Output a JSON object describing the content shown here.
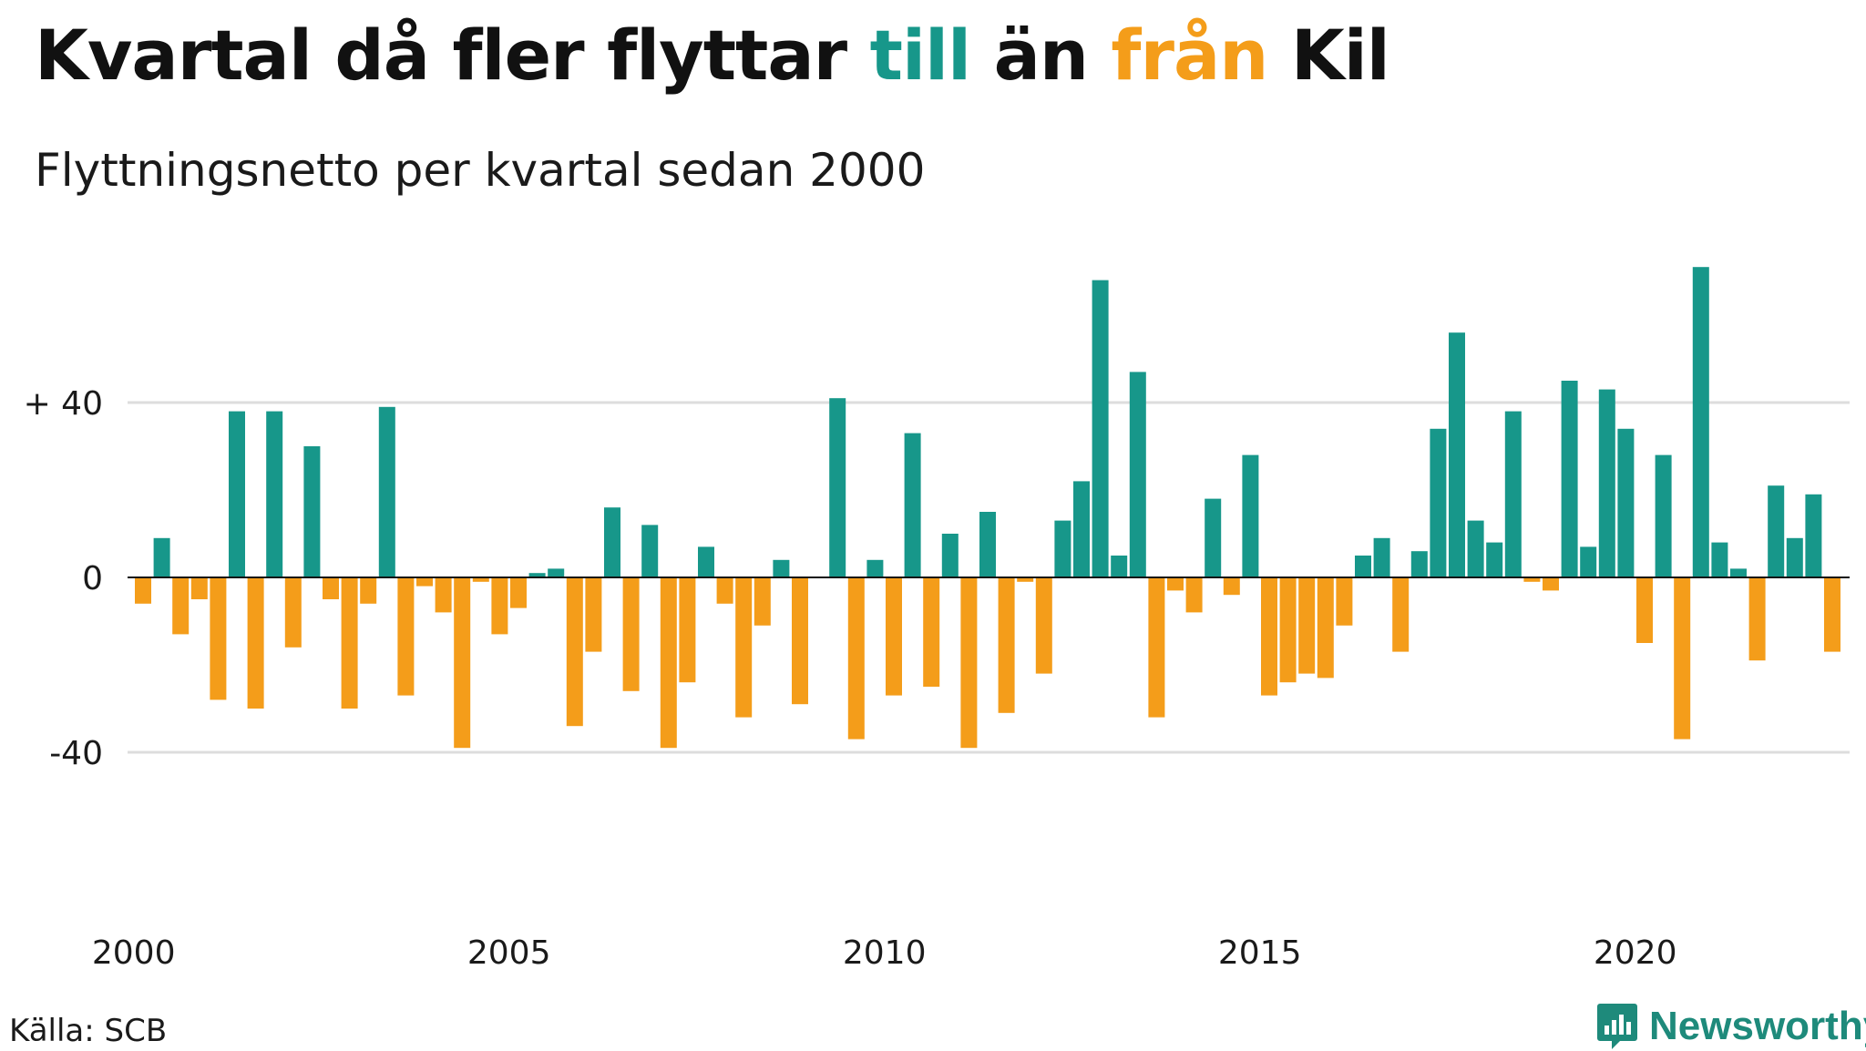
{
  "header": {
    "title_part1": "Kvartal då fler flyttar ",
    "title_till": "till",
    "title_part2": " än ",
    "title_fran": "från",
    "title_part3": " Kil",
    "subtitle": "Flyttningsnetto per kvartal sedan 2000"
  },
  "footer": {
    "source": "Källa: SCB",
    "brand": "Newsworthy",
    "brand_icon": "newsworthy-bar-chart-icon"
  },
  "colors": {
    "positive": "#17978a",
    "negative": "#f49d1a",
    "gridline": "#dddddd",
    "zeroline": "#111111",
    "title_accent_till": "#17978a",
    "title_accent_fran": "#f49d1a"
  },
  "chart_data": {
    "type": "bar",
    "title": "Kvartal då fler flyttar till än från Kil",
    "subtitle": "Flyttningsnetto per kvartal sedan 2000",
    "x_start": "2000-Q1",
    "x_ticks": [
      "2000",
      "2005",
      "2010",
      "2015",
      "2020"
    ],
    "y_ticks": [
      {
        "value": 40,
        "label": "+ 40"
      },
      {
        "value": 0,
        "label": "0"
      },
      {
        "value": -40,
        "label": "-40"
      }
    ],
    "ylim": [
      -80,
      80
    ],
    "grid": true,
    "legend": "none",
    "series": [
      {
        "values": [
          -6,
          9,
          -13,
          -5,
          -28,
          38,
          -30,
          38,
          -16,
          30,
          -5,
          -30,
          -6,
          39,
          -27,
          -2,
          -8,
          -39,
          -1,
          -13,
          -7,
          1,
          2,
          -34,
          -17,
          16,
          -26,
          12,
          -39,
          -24,
          7,
          -6,
          -32,
          -11,
          4,
          -29,
          0,
          41,
          -37,
          4,
          -27,
          33,
          -25,
          10,
          -39,
          15,
          -31,
          -1,
          -22,
          13,
          22,
          68,
          5,
          47,
          -32,
          -3,
          -8,
          18,
          -4,
          28,
          -27,
          -24,
          -22,
          -23,
          -11,
          5,
          9,
          -17,
          6,
          34,
          56,
          13,
          8,
          38,
          -1,
          -3,
          45,
          7,
          43,
          34,
          -15,
          28,
          -37,
          71,
          8,
          2,
          -19,
          21,
          9,
          19,
          -17
        ]
      }
    ]
  }
}
